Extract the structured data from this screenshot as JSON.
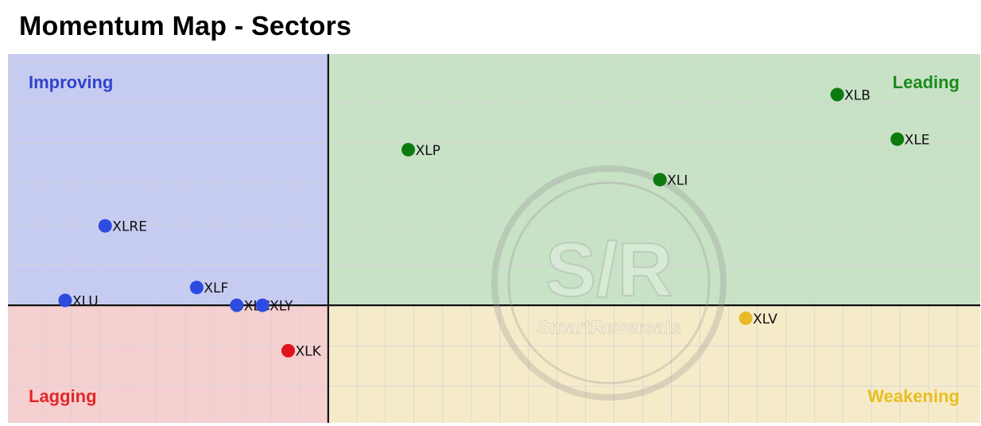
{
  "title": "Momentum Map - Sectors",
  "watermark": {
    "mark": "S/R",
    "text": "SmartReversals"
  },
  "chart_data": {
    "type": "scatter",
    "title": "Momentum Map - Sectors",
    "xlabel": "",
    "ylabel": "",
    "xlim": [
      -5.6,
      11.4
    ],
    "ylim": [
      -1.45,
      3.1
    ],
    "grid": true,
    "quadrants": {
      "top_left": {
        "label": "Improving",
        "fill": "#c6cbf2",
        "text_color": "#2f44c9"
      },
      "top_right": {
        "label": "Leading",
        "fill": "#c8e2c6",
        "text_color": "#1b8a1b"
      },
      "bottom_left": {
        "label": "Lagging",
        "fill": "#f6cfd0",
        "text_color": "#e0282a"
      },
      "bottom_right": {
        "label": "Weakening",
        "fill": "#f6ebc9",
        "text_color": "#e9bd1f"
      }
    },
    "points": [
      {
        "label": "XLB",
        "x": 8.9,
        "y": 2.6,
        "color": "#0d7a10"
      },
      {
        "label": "XLE",
        "x": 9.95,
        "y": 2.05,
        "color": "#0d7a10"
      },
      {
        "label": "XLP",
        "x": 1.4,
        "y": 1.92,
        "color": "#0d7a10"
      },
      {
        "label": "XLI",
        "x": 5.8,
        "y": 1.55,
        "color": "#0d7a10"
      },
      {
        "label": "XLRE",
        "x": -3.9,
        "y": 0.98,
        "color": "#2e4be0"
      },
      {
        "label": "XLF",
        "x": -2.3,
        "y": 0.22,
        "color": "#2e4be0"
      },
      {
        "label": "XLU",
        "x": -4.6,
        "y": 0.06,
        "color": "#2e4be0"
      },
      {
        "label": "XLC",
        "x": -1.6,
        "y": 0.0,
        "color": "#2e4be0"
      },
      {
        "label": "XLY",
        "x": -1.15,
        "y": 0.0,
        "color": "#2e4be0"
      },
      {
        "label": "XLK",
        "x": -0.7,
        "y": -0.56,
        "color": "#e0131c"
      },
      {
        "label": "XLV",
        "x": 7.3,
        "y": -0.16,
        "color": "#e9b92a"
      }
    ]
  }
}
